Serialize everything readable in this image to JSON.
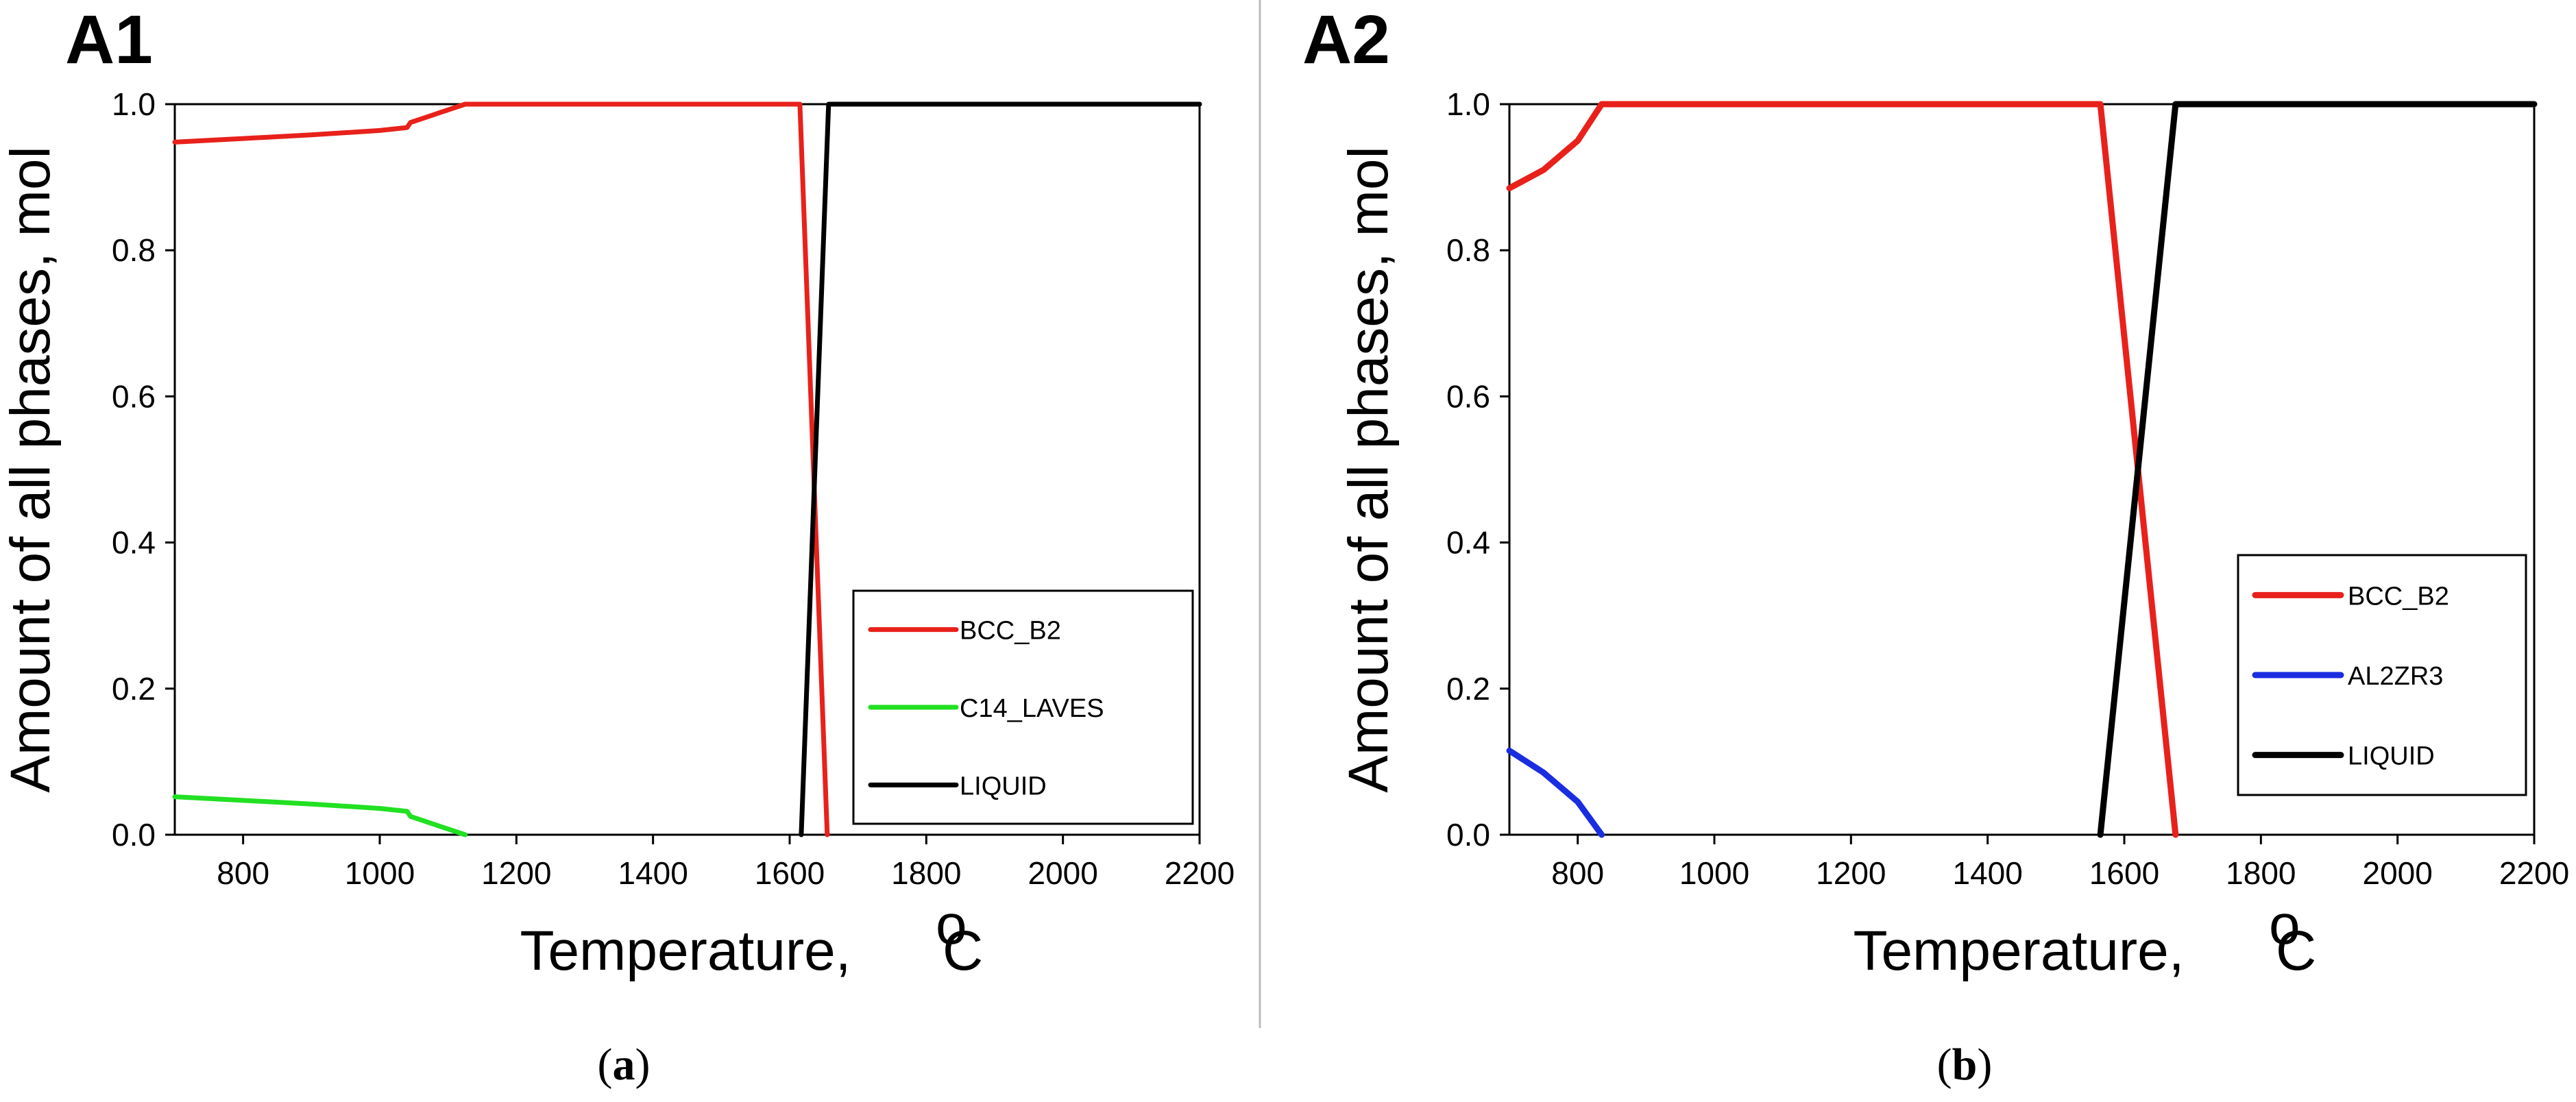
{
  "chart_data": [
    {
      "type": "line",
      "panel_label": "A1",
      "caption_open": "(",
      "caption_letter": "a",
      "caption_close": ")",
      "xlabel": "Temperature,",
      "xlabel_degree": "o",
      "xlabel_unit": "C",
      "ylabel": "Amount of all phases, mol",
      "xlim": [
        700,
        2200
      ],
      "ylim": [
        0,
        1.0
      ],
      "xticks": [
        800,
        1000,
        1200,
        1400,
        1600,
        1800,
        2000,
        2200
      ],
      "yticks": [
        0.0,
        0.2,
        0.4,
        0.6,
        0.8,
        1.0
      ],
      "ytick_labels": [
        "0.0",
        "0.2",
        "0.4",
        "0.6",
        "0.8",
        "1.0"
      ],
      "legend_position": "bottom-right",
      "series": [
        {
          "name": "BCC_B2",
          "color": "#e8211b",
          "x": [
            700,
            800,
            900,
            1000,
            1040,
            1045,
            1125,
            1615,
            1655
          ],
          "y": [
            0.948,
            0.953,
            0.958,
            0.964,
            0.968,
            0.975,
            1.0,
            1.0,
            0.0
          ]
        },
        {
          "name": "C14_LAVES",
          "color": "#22e022",
          "x": [
            700,
            800,
            900,
            1000,
            1040,
            1045,
            1125
          ],
          "y": [
            0.052,
            0.047,
            0.042,
            0.036,
            0.032,
            0.025,
            0.0
          ]
        },
        {
          "name": "LIQUID",
          "color": "#000000",
          "x": [
            1617,
            1657,
            2200
          ],
          "y": [
            0.0,
            1.0,
            1.0
          ]
        }
      ]
    },
    {
      "type": "line",
      "panel_label": "A2",
      "caption_open": "(",
      "caption_letter": "b",
      "caption_close": ")",
      "xlabel": "Temperature,",
      "xlabel_degree": "o",
      "xlabel_unit": "C",
      "ylabel": "Amount of all phases, mol",
      "xlim": [
        700,
        2200
      ],
      "ylim": [
        0,
        1.0
      ],
      "xticks": [
        800,
        1000,
        1200,
        1400,
        1600,
        1800,
        2000,
        2200
      ],
      "yticks": [
        0.0,
        0.2,
        0.4,
        0.6,
        0.8,
        1.0
      ],
      "ytick_labels": [
        "0.0",
        "0.2",
        "0.4",
        "0.6",
        "0.8",
        "1.0"
      ],
      "legend_position": "bottom-right",
      "series": [
        {
          "name": "BCC_B2",
          "color": "#e8211b",
          "x": [
            700,
            750,
            800,
            835,
            1565,
            1675
          ],
          "y": [
            0.885,
            0.91,
            0.95,
            1.0,
            1.0,
            0.0
          ]
        },
        {
          "name": "AL2ZR3",
          "color": "#1a2ee0",
          "x": [
            700,
            750,
            800,
            835
          ],
          "y": [
            0.115,
            0.085,
            0.045,
            0.0
          ]
        },
        {
          "name": "LIQUID",
          "color": "#000000",
          "x": [
            1565,
            1675,
            2200
          ],
          "y": [
            0.0,
            1.0,
            1.0
          ]
        }
      ]
    }
  ]
}
